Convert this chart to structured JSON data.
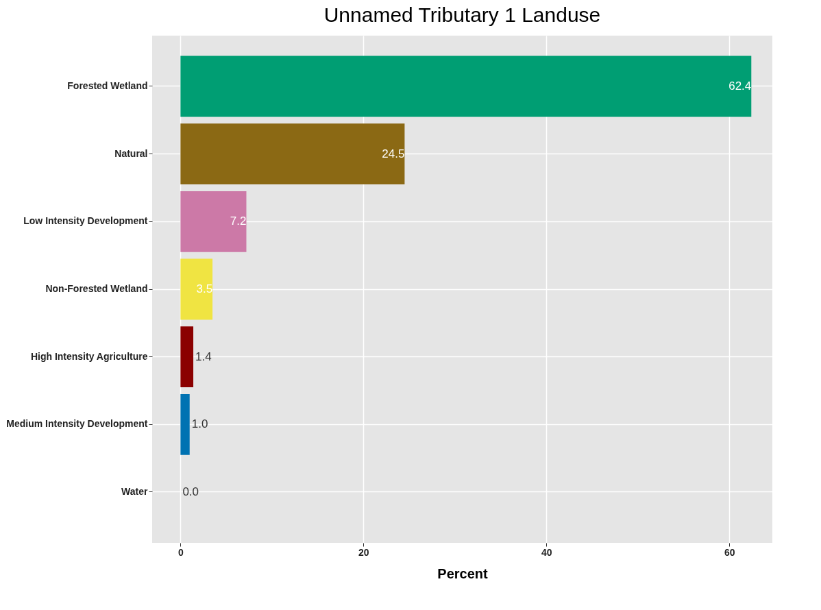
{
  "chart_data": {
    "type": "bar",
    "orientation": "horizontal",
    "title": "Unnamed Tributary 1 Landuse",
    "xlabel": "Percent",
    "categories": [
      "Forested Wetland",
      "Natural",
      "Low Intensity Development",
      "Non-Forested Wetland",
      "High Intensity Agriculture",
      "Medium Intensity Development",
      "Water"
    ],
    "values": [
      62.4,
      24.5,
      7.2,
      3.5,
      1.4,
      1.0,
      0.0
    ],
    "colors": [
      "#009e73",
      "#8b6914",
      "#cc79a7",
      "#f0e442",
      "#8b0000",
      "#0072b2",
      "#56b4e9"
    ],
    "value_labels": [
      "62.4",
      "24.5",
      "7.2",
      "3.5",
      "1.4",
      "1.0",
      "0.0"
    ],
    "xlim": [
      -3.1,
      64.7
    ],
    "xticks": [
      0,
      20,
      40,
      60
    ],
    "grid": true,
    "legend": false
  }
}
